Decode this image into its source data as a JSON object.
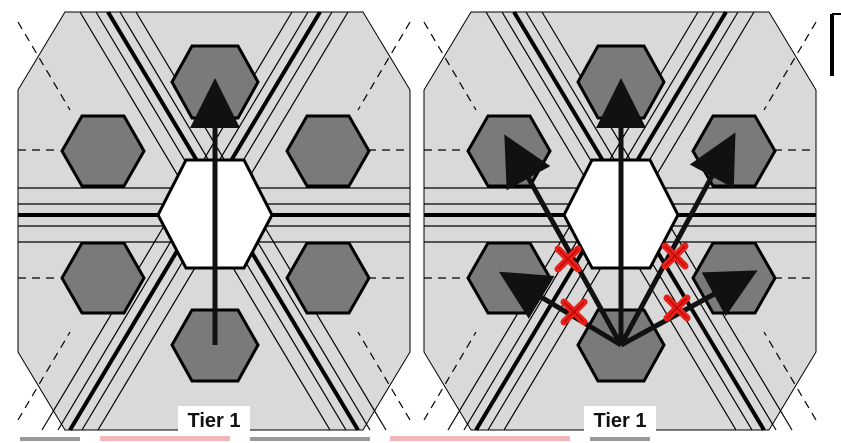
{
  "panels": [
    {
      "id": "left",
      "label": "Tier 1",
      "blocked_arrows": 0
    },
    {
      "id": "right",
      "label": "Tier 1",
      "blocked_arrows": 4
    }
  ],
  "colors": {
    "background": "#ffffff",
    "region_fill": "#d9d9d9",
    "cell_fill": "#7a7a7a",
    "center_cell_fill": "#ffffff",
    "line": "#000000",
    "arrow": "#111111",
    "cross": "#e8201a"
  },
  "icons": [
    "arrow-icon",
    "red-x-icon"
  ]
}
